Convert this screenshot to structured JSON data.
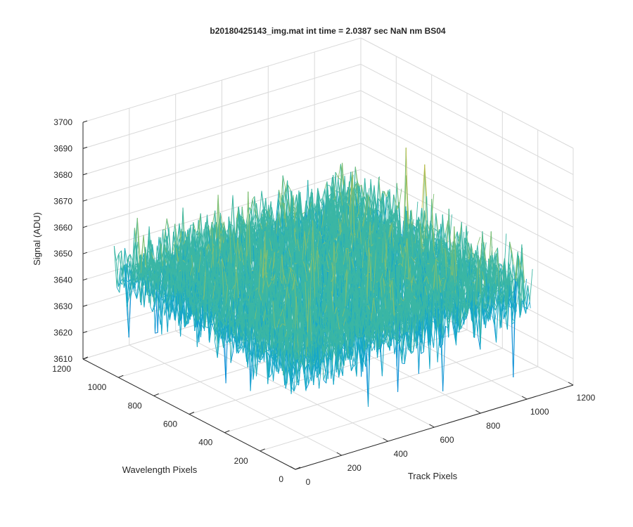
{
  "chart_data": {
    "type": "surface",
    "title": "b20180425143_img.mat int time = 2.0387 sec  NaN nm BS04",
    "xlabel": "Track Pixels",
    "ylabel": "Wavelength Pixels",
    "zlabel": "Signal (ADU)",
    "xlim": [
      0,
      1200
    ],
    "ylim": [
      0,
      1200
    ],
    "zlim": [
      3610,
      3700
    ],
    "xticks": [
      "0",
      "200",
      "400",
      "600",
      "800",
      "1000",
      "1200"
    ],
    "yticks": [
      "0",
      "200",
      "400",
      "600",
      "800",
      "1000",
      "1200"
    ],
    "zticks": [
      "3610",
      "3620",
      "3630",
      "3640",
      "3650",
      "3660",
      "3670",
      "3680",
      "3690",
      "3700"
    ],
    "surface_extent": {
      "x": [
        0,
        1024
      ],
      "y": [
        0,
        1024
      ]
    },
    "signal_mean": 3650,
    "signal_spread": 12,
    "signal_range": [
      3618,
      3690
    ],
    "grid": true,
    "colormap": [
      "#0072BD",
      "#0B8FD6",
      "#17A8C8",
      "#3BB6A4",
      "#7FBF72",
      "#C4BE4A",
      "#EDB120"
    ]
  }
}
